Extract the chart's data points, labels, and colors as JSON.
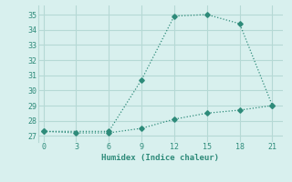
{
  "line1_x": [
    0,
    6,
    9,
    12,
    15,
    18,
    21
  ],
  "line1_y": [
    27.3,
    27.3,
    30.7,
    34.9,
    35.0,
    34.4,
    29.0
  ],
  "line2_x": [
    0,
    3,
    6,
    9,
    12,
    15,
    18,
    21
  ],
  "line2_y": [
    27.3,
    27.2,
    27.2,
    27.5,
    28.1,
    28.5,
    28.7,
    29.0
  ],
  "line_color": "#2e8b7a",
  "bg_color": "#d8f0ee",
  "grid_color": "#b5d9d5",
  "xlabel": "Humidex (Indice chaleur)",
  "xticks": [
    0,
    3,
    6,
    9,
    12,
    15,
    18,
    21
  ],
  "yticks": [
    27,
    28,
    29,
    30,
    31,
    32,
    33,
    34,
    35
  ],
  "ylim": [
    26.6,
    35.6
  ],
  "xlim": [
    -0.5,
    22.0
  ]
}
